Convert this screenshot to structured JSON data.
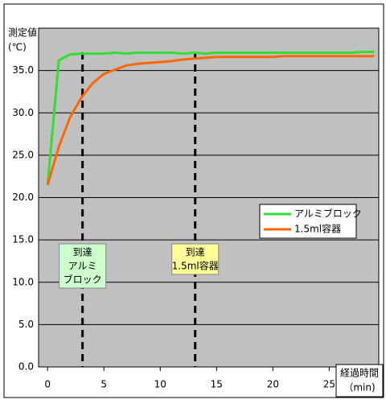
{
  "chart_data": {
    "type": "line",
    "y_label": [
      "測定値",
      "(℃)"
    ],
    "x_label": [
      "経過時間",
      "（min)"
    ],
    "x": [
      0,
      1,
      2,
      3,
      4,
      5,
      6,
      7,
      8,
      9,
      10,
      11,
      12,
      13,
      14,
      15,
      16,
      17,
      18,
      19,
      20,
      21,
      22,
      23,
      24,
      25,
      26,
      27,
      28,
      29
    ],
    "series": [
      {
        "name": "アルミブロック",
        "color": "#33dd33",
        "values": [
          21.5,
          36.2,
          36.9,
          37.0,
          37.0,
          37.0,
          37.1,
          37.0,
          37.1,
          37.1,
          37.1,
          37.1,
          37.0,
          37.1,
          37.0,
          37.1,
          37.1,
          37.1,
          37.1,
          37.1,
          37.1,
          37.1,
          37.1,
          37.1,
          37.1,
          37.1,
          37.1,
          37.1,
          37.2,
          37.2
        ]
      },
      {
        "name": "1.5ml容器",
        "color": "#ff6600",
        "values": [
          21.5,
          26.0,
          29.5,
          31.8,
          33.5,
          34.6,
          35.1,
          35.6,
          35.8,
          35.9,
          36.0,
          36.1,
          36.3,
          36.4,
          36.5,
          36.6,
          36.6,
          36.6,
          36.6,
          36.6,
          36.6,
          36.7,
          36.7,
          36.7,
          36.7,
          36.7,
          36.7,
          36.7,
          36.7,
          36.7
        ]
      }
    ],
    "xlim": [
      -0.8,
      29.4
    ],
    "ylim": [
      0,
      40
    ],
    "xticks": [
      0,
      5,
      10,
      15,
      20,
      25
    ],
    "yticks": [
      {
        "value": 0,
        "label": "0.0"
      },
      {
        "value": 5,
        "label": "5.0"
      },
      {
        "value": 10,
        "label": "10.0"
      },
      {
        "value": 15,
        "label": "15.0"
      },
      {
        "value": 20,
        "label": "20.0"
      },
      {
        "value": 25,
        "label": "25.0"
      },
      {
        "value": 30,
        "label": "30.0"
      },
      {
        "value": 35,
        "label": "35.0"
      }
    ],
    "grid": true,
    "annotations": [
      {
        "x": 3.1,
        "lines": [
          "到達",
          "アルミ",
          "ブロック"
        ],
        "color": "#ccffcc"
      },
      {
        "x": 13.1,
        "lines": [
          "到達",
          "1.5ml容器"
        ],
        "color": "#ffff99"
      }
    ]
  }
}
